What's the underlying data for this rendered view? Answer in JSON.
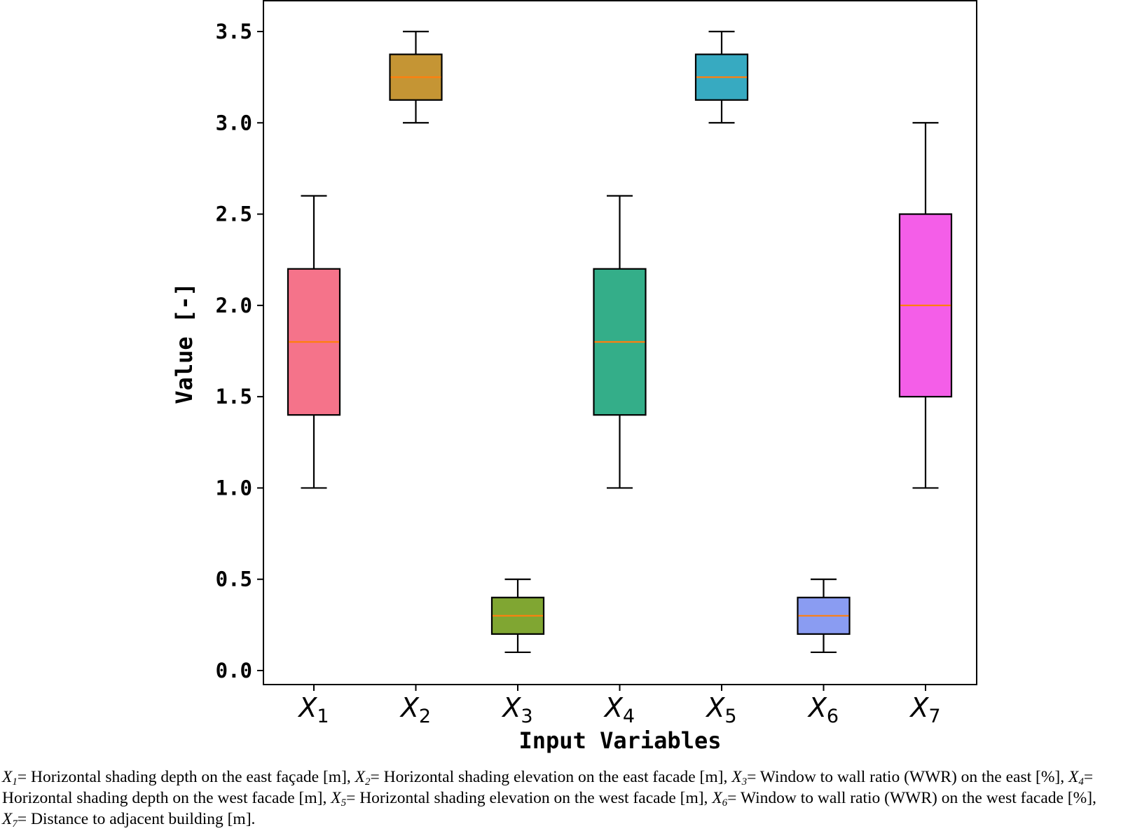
{
  "chart_data": {
    "type": "box",
    "xlabel": "Input Variables",
    "ylabel": "Value [-]",
    "ylim": [
      -0.07,
      3.65
    ],
    "yticks": [
      0.0,
      0.5,
      1.0,
      1.5,
      2.0,
      2.5,
      3.0,
      3.5
    ],
    "categories": [
      {
        "symbol": "X",
        "sub": "1"
      },
      {
        "symbol": "X",
        "sub": "2"
      },
      {
        "symbol": "X",
        "sub": "3"
      },
      {
        "symbol": "X",
        "sub": "4"
      },
      {
        "symbol": "X",
        "sub": "5"
      },
      {
        "symbol": "X",
        "sub": "6"
      },
      {
        "symbol": "X",
        "sub": "7"
      }
    ],
    "boxes": [
      {
        "min": 1.0,
        "q1": 1.4,
        "median": 1.8,
        "q3": 2.2,
        "max": 2.6,
        "color": "#f5738a"
      },
      {
        "min": 3.0,
        "q1": 3.125,
        "median": 3.25,
        "q3": 3.375,
        "max": 3.5,
        "color": "#c59534"
      },
      {
        "min": 0.1,
        "q1": 0.2,
        "median": 0.3,
        "q3": 0.4,
        "max": 0.5,
        "color": "#80a632"
      },
      {
        "min": 1.0,
        "q1": 1.4,
        "median": 1.8,
        "q3": 2.2,
        "max": 2.6,
        "color": "#34ae89"
      },
      {
        "min": 3.0,
        "q1": 3.125,
        "median": 3.25,
        "q3": 3.375,
        "max": 3.5,
        "color": "#37aac1"
      },
      {
        "min": 0.1,
        "q1": 0.2,
        "median": 0.3,
        "q3": 0.4,
        "max": 0.5,
        "color": "#8a9cf2"
      },
      {
        "min": 1.0,
        "q1": 1.5,
        "median": 2.0,
        "q3": 2.5,
        "max": 3.0,
        "color": "#f45ee8"
      }
    ],
    "median_color": "#ff7f0e",
    "grid": false,
    "legend": "none"
  },
  "caption": [
    {
      "var": "X",
      "sub": "1",
      "text": "= Horizontal shading depth on the east façade [m], "
    },
    {
      "var": "X",
      "sub": "2",
      "text": "= Horizontal shading elevation on the east facade [m], "
    },
    {
      "var": "X",
      "sub": "3",
      "text": "= Window to wall ratio (WWR) on the east [%], "
    },
    {
      "var": "X",
      "sub": "4",
      "text": "= Horizontal shading depth on the west facade [m], "
    },
    {
      "var": "X",
      "sub": "5",
      "text": "= Horizontal shading elevation on the west facade [m], "
    },
    {
      "var": "X",
      "sub": "6",
      "text": "= Window to wall ratio (WWR) on the west facade [%], "
    },
    {
      "var": "X",
      "sub": "7",
      "text": "= Distance to adjacent building [m]."
    }
  ]
}
